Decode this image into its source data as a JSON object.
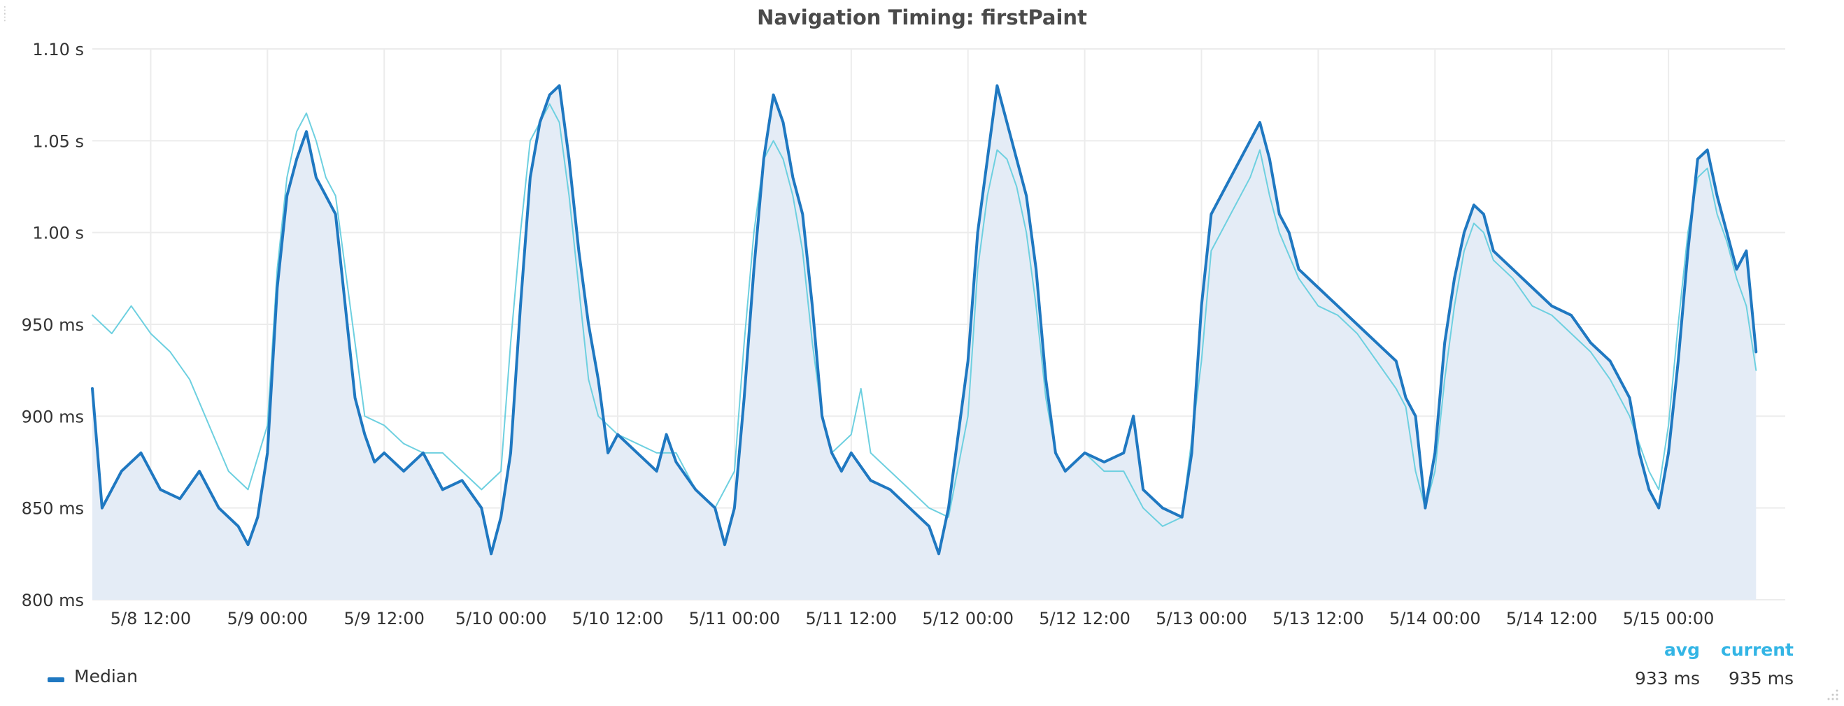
{
  "panel": {
    "title": "Navigation Timing: firstPaint"
  },
  "legend": {
    "avg_header": "avg",
    "current_header": "current",
    "series_name": "Median",
    "avg_value": "933 ms",
    "current_value": "935 ms"
  },
  "icons": {
    "drag": "drag-handle-icon",
    "resize": "resize-corner-icon"
  },
  "colors": {
    "median": "#1f78c1",
    "comparison": "#6ed0e0",
    "fill": "#e4ecf6",
    "grid": "#ececec",
    "legend_header": "#33b5e5"
  },
  "chart_data": {
    "type": "line",
    "title": "Navigation Timing: firstPaint",
    "xlabel": "",
    "ylabel": "",
    "ylim": [
      800,
      1100
    ],
    "y_ticks": [
      800,
      850,
      900,
      950,
      1000,
      1050,
      1100
    ],
    "y_tick_labels": [
      "800 ms",
      "850 ms",
      "900 ms",
      "950 ms",
      "1.00 s",
      "1.05 s",
      "1.10 s"
    ],
    "x_range": [
      "2016-05-08 06:00",
      "2016-05-15 12:00"
    ],
    "x_ticks": [
      "5/8 12:00",
      "5/9 00:00",
      "5/9 12:00",
      "5/10 00:00",
      "5/10 12:00",
      "5/11 00:00",
      "5/11 12:00",
      "5/12 00:00",
      "5/12 12:00",
      "5/13 00:00",
      "5/13 12:00",
      "5/14 00:00",
      "5/14 12:00",
      "5/15 00:00"
    ],
    "grid": true,
    "legend_position": "bottom",
    "series": [
      {
        "name": "Median",
        "color": "#1f78c1",
        "fill": true,
        "legend": true,
        "points": [
          [
            "5/8 06:00",
            915
          ],
          [
            "5/8 07:00",
            850
          ],
          [
            "5/8 09:00",
            870
          ],
          [
            "5/8 11:00",
            880
          ],
          [
            "5/8 13:00",
            860
          ],
          [
            "5/8 15:00",
            855
          ],
          [
            "5/8 17:00",
            870
          ],
          [
            "5/8 19:00",
            850
          ],
          [
            "5/8 21:00",
            840
          ],
          [
            "5/8 22:00",
            830
          ],
          [
            "5/8 23:00",
            845
          ],
          [
            "5/9 00:00",
            880
          ],
          [
            "5/9 01:00",
            970
          ],
          [
            "5/9 02:00",
            1020
          ],
          [
            "5/9 03:00",
            1040
          ],
          [
            "5/9 04:00",
            1055
          ],
          [
            "5/9 05:00",
            1030
          ],
          [
            "5/9 06:00",
            1020
          ],
          [
            "5/9 07:00",
            1010
          ],
          [
            "5/9 08:00",
            960
          ],
          [
            "5/9 09:00",
            910
          ],
          [
            "5/9 10:00",
            890
          ],
          [
            "5/9 11:00",
            875
          ],
          [
            "5/9 12:00",
            880
          ],
          [
            "5/9 14:00",
            870
          ],
          [
            "5/9 16:00",
            880
          ],
          [
            "5/9 18:00",
            860
          ],
          [
            "5/9 20:00",
            865
          ],
          [
            "5/9 22:00",
            850
          ],
          [
            "5/9 23:00",
            825
          ],
          [
            "5/10 00:00",
            845
          ],
          [
            "5/10 01:00",
            880
          ],
          [
            "5/10 02:00",
            960
          ],
          [
            "5/10 03:00",
            1030
          ],
          [
            "5/10 04:00",
            1060
          ],
          [
            "5/10 05:00",
            1075
          ],
          [
            "5/10 06:00",
            1080
          ],
          [
            "5/10 07:00",
            1040
          ],
          [
            "5/10 08:00",
            990
          ],
          [
            "5/10 09:00",
            950
          ],
          [
            "5/10 10:00",
            920
          ],
          [
            "5/10 11:00",
            880
          ],
          [
            "5/10 12:00",
            890
          ],
          [
            "5/10 14:00",
            880
          ],
          [
            "5/10 16:00",
            870
          ],
          [
            "5/10 17:00",
            890
          ],
          [
            "5/10 18:00",
            875
          ],
          [
            "5/10 20:00",
            860
          ],
          [
            "5/10 22:00",
            850
          ],
          [
            "5/10 23:00",
            830
          ],
          [
            "5/11 00:00",
            850
          ],
          [
            "5/11 01:00",
            910
          ],
          [
            "5/11 02:00",
            980
          ],
          [
            "5/11 03:00",
            1040
          ],
          [
            "5/11 04:00",
            1075
          ],
          [
            "5/11 05:00",
            1060
          ],
          [
            "5/11 06:00",
            1030
          ],
          [
            "5/11 07:00",
            1010
          ],
          [
            "5/11 08:00",
            960
          ],
          [
            "5/11 09:00",
            900
          ],
          [
            "5/11 10:00",
            880
          ],
          [
            "5/11 11:00",
            870
          ],
          [
            "5/11 12:00",
            880
          ],
          [
            "5/11 14:00",
            865
          ],
          [
            "5/11 16:00",
            860
          ],
          [
            "5/11 18:00",
            850
          ],
          [
            "5/11 20:00",
            840
          ],
          [
            "5/11 21:00",
            825
          ],
          [
            "5/11 22:00",
            850
          ],
          [
            "5/12 00:00",
            930
          ],
          [
            "5/12 01:00",
            1000
          ],
          [
            "5/12 02:00",
            1040
          ],
          [
            "5/12 03:00",
            1080
          ],
          [
            "5/12 04:00",
            1060
          ],
          [
            "5/12 05:00",
            1040
          ],
          [
            "5/12 06:00",
            1020
          ],
          [
            "5/12 07:00",
            980
          ],
          [
            "5/12 08:00",
            920
          ],
          [
            "5/12 09:00",
            880
          ],
          [
            "5/12 10:00",
            870
          ],
          [
            "5/12 12:00",
            880
          ],
          [
            "5/12 14:00",
            875
          ],
          [
            "5/12 16:00",
            880
          ],
          [
            "5/12 17:00",
            900
          ],
          [
            "5/12 18:00",
            860
          ],
          [
            "5/12 20:00",
            850
          ],
          [
            "5/12 22:00",
            845
          ],
          [
            "5/12 23:00",
            880
          ],
          [
            "5/13 00:00",
            960
          ],
          [
            "5/13 01:00",
            1010
          ],
          [
            "5/13 03:00",
            1030
          ],
          [
            "5/13 05:00",
            1050
          ],
          [
            "5/13 06:00",
            1060
          ],
          [
            "5/13 07:00",
            1040
          ],
          [
            "5/13 08:00",
            1010
          ],
          [
            "5/13 09:00",
            1000
          ],
          [
            "5/13 10:00",
            980
          ],
          [
            "5/13 12:00",
            970
          ],
          [
            "5/13 14:00",
            960
          ],
          [
            "5/13 16:00",
            950
          ],
          [
            "5/13 18:00",
            940
          ],
          [
            "5/13 20:00",
            930
          ],
          [
            "5/13 21:00",
            910
          ],
          [
            "5/13 22:00",
            900
          ],
          [
            "5/13 23:00",
            850
          ],
          [
            "5/14 00:00",
            880
          ],
          [
            "5/14 01:00",
            940
          ],
          [
            "5/14 02:00",
            975
          ],
          [
            "5/14 03:00",
            1000
          ],
          [
            "5/14 04:00",
            1015
          ],
          [
            "5/14 05:00",
            1010
          ],
          [
            "5/14 06:00",
            990
          ],
          [
            "5/14 08:00",
            980
          ],
          [
            "5/14 10:00",
            970
          ],
          [
            "5/14 12:00",
            960
          ],
          [
            "5/14 14:00",
            955
          ],
          [
            "5/14 16:00",
            940
          ],
          [
            "5/14 18:00",
            930
          ],
          [
            "5/14 20:00",
            910
          ],
          [
            "5/14 21:00",
            880
          ],
          [
            "5/14 22:00",
            860
          ],
          [
            "5/14 23:00",
            850
          ],
          [
            "5/15 00:00",
            880
          ],
          [
            "5/15 01:00",
            930
          ],
          [
            "5/15 02:00",
            990
          ],
          [
            "5/15 03:00",
            1040
          ],
          [
            "5/15 04:00",
            1045
          ],
          [
            "5/15 05:00",
            1020
          ],
          [
            "5/15 06:00",
            1000
          ],
          [
            "5/15 07:00",
            980
          ],
          [
            "5/15 08:00",
            990
          ],
          [
            "5/15 09:00",
            935
          ]
        ]
      },
      {
        "color": "#6ed0e0",
        "fill": false,
        "legend": false,
        "points": [
          [
            "5/8 06:00",
            955
          ],
          [
            "5/8 08:00",
            945
          ],
          [
            "5/8 10:00",
            960
          ],
          [
            "5/8 12:00",
            945
          ],
          [
            "5/8 14:00",
            935
          ],
          [
            "5/8 16:00",
            920
          ],
          [
            "5/8 18:00",
            895
          ],
          [
            "5/8 20:00",
            870
          ],
          [
            "5/8 22:00",
            860
          ],
          [
            "5/9 00:00",
            895
          ],
          [
            "5/9 01:00",
            980
          ],
          [
            "5/9 02:00",
            1030
          ],
          [
            "5/9 03:00",
            1055
          ],
          [
            "5/9 04:00",
            1065
          ],
          [
            "5/9 05:00",
            1050
          ],
          [
            "5/9 06:00",
            1030
          ],
          [
            "5/9 07:00",
            1020
          ],
          [
            "5/9 08:00",
            980
          ],
          [
            "5/9 09:00",
            940
          ],
          [
            "5/9 10:00",
            900
          ],
          [
            "5/9 12:00",
            895
          ],
          [
            "5/9 14:00",
            885
          ],
          [
            "5/9 16:00",
            880
          ],
          [
            "5/9 18:00",
            880
          ],
          [
            "5/9 20:00",
            870
          ],
          [
            "5/9 22:00",
            860
          ],
          [
            "5/10 00:00",
            870
          ],
          [
            "5/10 01:00",
            940
          ],
          [
            "5/10 02:00",
            1000
          ],
          [
            "5/10 03:00",
            1050
          ],
          [
            "5/10 04:00",
            1060
          ],
          [
            "5/10 05:00",
            1070
          ],
          [
            "5/10 06:00",
            1060
          ],
          [
            "5/10 07:00",
            1020
          ],
          [
            "5/10 08:00",
            970
          ],
          [
            "5/10 09:00",
            920
          ],
          [
            "5/10 10:00",
            900
          ],
          [
            "5/10 12:00",
            890
          ],
          [
            "5/10 14:00",
            885
          ],
          [
            "5/10 16:00",
            880
          ],
          [
            "5/10 18:00",
            880
          ],
          [
            "5/10 20:00",
            860
          ],
          [
            "5/10 22:00",
            850
          ],
          [
            "5/11 00:00",
            870
          ],
          [
            "5/11 01:00",
            940
          ],
          [
            "5/11 02:00",
            1000
          ],
          [
            "5/11 03:00",
            1040
          ],
          [
            "5/11 04:00",
            1050
          ],
          [
            "5/11 05:00",
            1040
          ],
          [
            "5/11 06:00",
            1020
          ],
          [
            "5/11 07:00",
            990
          ],
          [
            "5/11 08:00",
            940
          ],
          [
            "5/11 09:00",
            900
          ],
          [
            "5/11 10:00",
            880
          ],
          [
            "5/11 12:00",
            890
          ],
          [
            "5/11 13:00",
            915
          ],
          [
            "5/11 14:00",
            880
          ],
          [
            "5/11 16:00",
            870
          ],
          [
            "5/11 18:00",
            860
          ],
          [
            "5/11 20:00",
            850
          ],
          [
            "5/11 22:00",
            845
          ],
          [
            "5/12 00:00",
            900
          ],
          [
            "5/12 01:00",
            980
          ],
          [
            "5/12 02:00",
            1020
          ],
          [
            "5/12 03:00",
            1045
          ],
          [
            "5/12 04:00",
            1040
          ],
          [
            "5/12 05:00",
            1025
          ],
          [
            "5/12 06:00",
            1000
          ],
          [
            "5/12 07:00",
            960
          ],
          [
            "5/12 08:00",
            910
          ],
          [
            "5/12 09:00",
            880
          ],
          [
            "5/12 10:00",
            870
          ],
          [
            "5/12 12:00",
            880
          ],
          [
            "5/12 14:00",
            870
          ],
          [
            "5/12 16:00",
            870
          ],
          [
            "5/12 18:00",
            850
          ],
          [
            "5/12 20:00",
            840
          ],
          [
            "5/12 22:00",
            845
          ],
          [
            "5/13 00:00",
            930
          ],
          [
            "5/13 01:00",
            990
          ],
          [
            "5/13 03:00",
            1010
          ],
          [
            "5/13 05:00",
            1030
          ],
          [
            "5/13 06:00",
            1045
          ],
          [
            "5/13 07:00",
            1020
          ],
          [
            "5/13 08:00",
            1000
          ],
          [
            "5/13 10:00",
            975
          ],
          [
            "5/13 12:00",
            960
          ],
          [
            "5/13 14:00",
            955
          ],
          [
            "5/13 16:00",
            945
          ],
          [
            "5/13 18:00",
            930
          ],
          [
            "5/13 20:00",
            915
          ],
          [
            "5/13 21:00",
            905
          ],
          [
            "5/13 22:00",
            870
          ],
          [
            "5/13 23:00",
            850
          ],
          [
            "5/14 00:00",
            870
          ],
          [
            "5/14 01:00",
            920
          ],
          [
            "5/14 02:00",
            960
          ],
          [
            "5/14 03:00",
            990
          ],
          [
            "5/14 04:00",
            1005
          ],
          [
            "5/14 05:00",
            1000
          ],
          [
            "5/14 06:00",
            985
          ],
          [
            "5/14 08:00",
            975
          ],
          [
            "5/14 10:00",
            960
          ],
          [
            "5/14 12:00",
            955
          ],
          [
            "5/14 14:00",
            945
          ],
          [
            "5/14 16:00",
            935
          ],
          [
            "5/14 18:00",
            920
          ],
          [
            "5/14 20:00",
            900
          ],
          [
            "5/14 21:00",
            885
          ],
          [
            "5/14 22:00",
            870
          ],
          [
            "5/14 23:00",
            860
          ],
          [
            "5/15 00:00",
            895
          ],
          [
            "5/15 01:00",
            950
          ],
          [
            "5/15 02:00",
            1000
          ],
          [
            "5/15 03:00",
            1030
          ],
          [
            "5/15 04:00",
            1035
          ],
          [
            "5/15 05:00",
            1010
          ],
          [
            "5/15 06:00",
            995
          ],
          [
            "5/15 07:00",
            975
          ],
          [
            "5/15 08:00",
            960
          ],
          [
            "5/15 09:00",
            925
          ]
        ]
      }
    ]
  }
}
